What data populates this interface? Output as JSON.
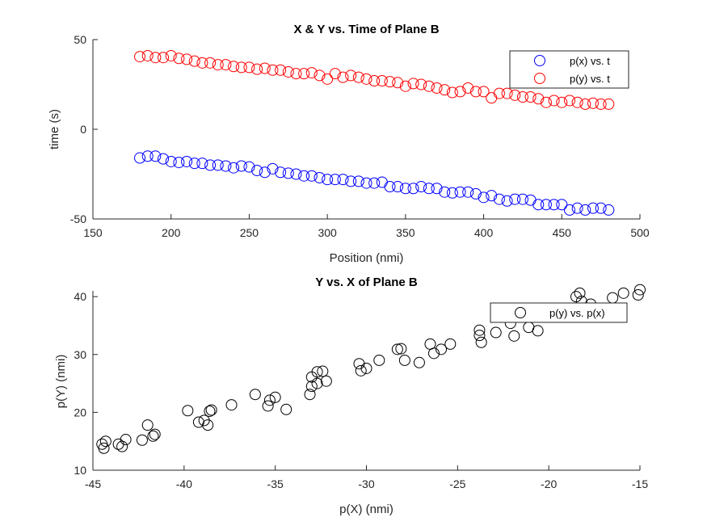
{
  "chart_data": [
    {
      "type": "scatter",
      "title": "X & Y vs. Time of Plane B",
      "xlabel": "Position (nmi)",
      "ylabel": "time (s)",
      "xlim": [
        150,
        500
      ],
      "ylim": [
        -50,
        50
      ],
      "xticks": [
        150,
        200,
        250,
        300,
        350,
        400,
        450,
        500
      ],
      "yticks": [
        -50,
        0,
        50
      ],
      "legend_position": "top-right",
      "x": [
        180,
        185,
        190,
        195,
        200,
        205,
        210,
        215,
        220,
        225,
        230,
        235,
        240,
        245,
        250,
        255,
        260,
        265,
        270,
        275,
        280,
        285,
        290,
        295,
        300,
        305,
        310,
        315,
        320,
        325,
        330,
        335,
        340,
        345,
        350,
        355,
        360,
        365,
        370,
        375,
        380,
        385,
        390,
        395,
        400,
        405,
        410,
        415,
        420,
        425,
        430,
        435,
        440,
        445,
        450,
        455,
        460,
        465,
        470,
        475,
        480
      ],
      "series": [
        {
          "name": "p(x) vs. t",
          "color": "#0000ff",
          "values": [
            -16,
            -15,
            -15,
            -16.5,
            -18,
            -18.5,
            -18,
            -19,
            -19,
            -20,
            -20,
            -20.5,
            -21.5,
            -20.5,
            -21,
            -23,
            -24,
            -22,
            -24,
            -24.5,
            -25,
            -26,
            -26,
            -27,
            -28,
            -28,
            -28,
            -29,
            -29,
            -30,
            -30,
            -29.5,
            -32,
            -32,
            -33,
            -33,
            -32,
            -33,
            -33,
            -35,
            -35.5,
            -35,
            -35,
            -36,
            -38,
            -37,
            -39,
            -40,
            -39,
            -39,
            -39.5,
            -42,
            -42,
            -42,
            -42,
            -45,
            -44,
            -45,
            -44,
            -44,
            -45
          ]
        },
        {
          "name": "p(y) vs. t",
          "color": "#ff0000",
          "values": [
            40.5,
            41,
            40,
            40,
            41,
            39.5,
            39,
            38,
            37,
            37,
            36,
            36,
            35,
            34.5,
            34.5,
            33.5,
            34,
            33,
            33,
            32,
            31,
            31,
            31.5,
            30,
            28,
            31,
            29,
            30,
            29,
            28,
            27,
            27,
            26.5,
            26,
            24,
            25.5,
            25,
            24,
            23,
            22,
            20.5,
            21,
            23,
            21,
            21,
            17.5,
            20,
            20,
            19,
            18,
            18,
            17,
            15,
            16,
            15,
            16,
            15,
            14,
            14.5,
            14,
            14
          ]
        }
      ]
    },
    {
      "type": "scatter",
      "title": "Y vs. X of Plane B",
      "xlabel": "p(X) (nmi)",
      "ylabel": "p(Y) (nmi)",
      "xlim": [
        -45,
        -15
      ],
      "ylim": [
        10,
        41
      ],
      "xticks": [
        -45,
        -40,
        -35,
        -30,
        -25,
        -20,
        -15
      ],
      "yticks": [
        10,
        20,
        30,
        40
      ],
      "legend_position": "top-right",
      "series": [
        {
          "name": "p(y) vs. p(x)",
          "color": "#000000",
          "points": [
            [
              -44.5,
              14.5
            ],
            [
              -44.4,
              13.8
            ],
            [
              -44.3,
              15
            ],
            [
              -43.6,
              14.5
            ],
            [
              -43.4,
              14.1
            ],
            [
              -43.2,
              15.3
            ],
            [
              -42.3,
              15.2
            ],
            [
              -42.0,
              17.8
            ],
            [
              -41.7,
              15.9
            ],
            [
              -41.6,
              16.2
            ],
            [
              -39.8,
              20.3
            ],
            [
              -39.2,
              18.3
            ],
            [
              -38.9,
              18.6
            ],
            [
              -38.7,
              17.8
            ],
            [
              -38.6,
              20.2
            ],
            [
              -38.5,
              20.4
            ],
            [
              -37.4,
              21.3
            ],
            [
              -36.1,
              23.1
            ],
            [
              -35.4,
              21.1
            ],
            [
              -35.3,
              22.1
            ],
            [
              -35.0,
              22.6
            ],
            [
              -34.4,
              20.5
            ],
            [
              -33.1,
              23.1
            ],
            [
              -33.0,
              26.1
            ],
            [
              -33.0,
              24.5
            ],
            [
              -32.7,
              25
            ],
            [
              -32.7,
              27
            ],
            [
              -32.4,
              27.1
            ],
            [
              -32.2,
              25.4
            ],
            [
              -30.4,
              28.4
            ],
            [
              -30.3,
              27.2
            ],
            [
              -30.0,
              27.6
            ],
            [
              -29.3,
              29
            ],
            [
              -28.3,
              30.9
            ],
            [
              -28.1,
              31
            ],
            [
              -27.9,
              29
            ],
            [
              -27.1,
              28.6
            ],
            [
              -26.5,
              31.8
            ],
            [
              -26.3,
              30.2
            ],
            [
              -25.9,
              30.9
            ],
            [
              -25.4,
              31.8
            ],
            [
              -23.8,
              34.2
            ],
            [
              -23.8,
              33.3
            ],
            [
              -23.7,
              32.1
            ],
            [
              -22.9,
              33.8
            ],
            [
              -22.1,
              35.4
            ],
            [
              -21.9,
              33.2
            ],
            [
              -21.3,
              37.6
            ],
            [
              -21.1,
              34.7
            ],
            [
              -20.6,
              34.1
            ],
            [
              -20.4,
              37.1
            ],
            [
              -18.5,
              40
            ],
            [
              -18.3,
              40.6
            ],
            [
              -18.2,
              39.2
            ],
            [
              -17.7,
              38.7
            ],
            [
              -16.5,
              39.8
            ],
            [
              -15.9,
              40.6
            ],
            [
              -15.1,
              40.3
            ],
            [
              -15.0,
              41.2
            ]
          ]
        }
      ]
    }
  ]
}
